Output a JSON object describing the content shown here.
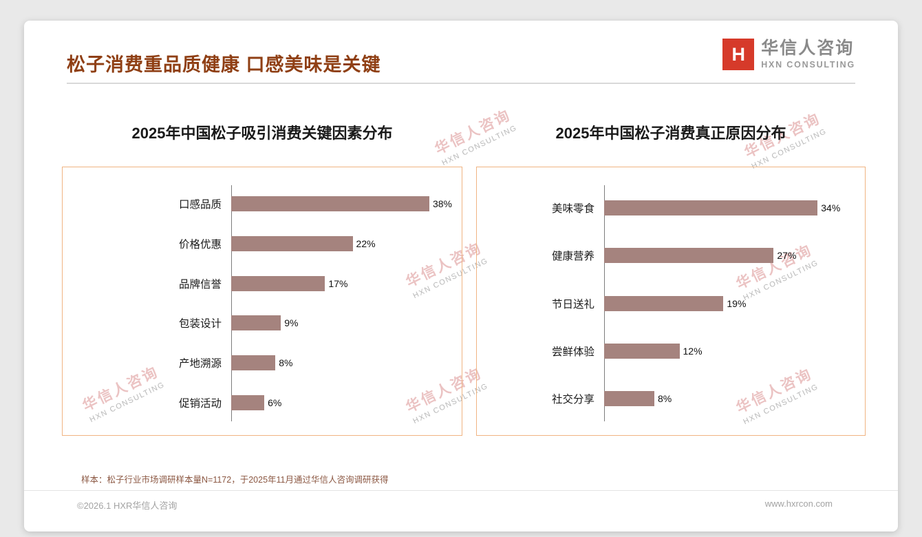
{
  "page": {
    "title": "松子消费重品质健康 口感美味是关键",
    "sample_note": "样本：松子行业市场调研样本量N=1172，于2025年11月通过华信人咨询调研获得",
    "copyright": "©2026.1 HXR华信人咨询",
    "website": "www.hxrcon.com"
  },
  "logo": {
    "mark": "H",
    "name": "华信人咨询",
    "subtitle": "HXN CONSULTING"
  },
  "watermark": {
    "cn": "华信人咨询",
    "en": "HXN CONSULTING"
  },
  "colors": {
    "title": "#8f3f14",
    "bar": "#a5837e",
    "chart_border": "#f0b482",
    "logo_red": "#d63a2a",
    "background": "#e9e9e9"
  },
  "chart_data": [
    {
      "type": "bar",
      "orientation": "horizontal",
      "title": "2025年中国松子吸引消费关键因素分布",
      "categories": [
        "口感品质",
        "价格优惠",
        "品牌信誉",
        "包装设计",
        "产地溯源",
        "促销活动"
      ],
      "values": [
        38,
        22,
        17,
        9,
        8,
        6
      ],
      "unit": "%",
      "xlim": [
        0,
        40
      ],
      "grid": false,
      "legend": false,
      "xlabel": "",
      "ylabel": ""
    },
    {
      "type": "bar",
      "orientation": "horizontal",
      "title": "2025年中国松子消费真正原因分布",
      "categories": [
        "美味零食",
        "健康营养",
        "节日送礼",
        "尝鲜体验",
        "社交分享"
      ],
      "values": [
        34,
        27,
        19,
        12,
        8
      ],
      "unit": "%",
      "xlim": [
        0,
        40
      ],
      "grid": false,
      "legend": false,
      "xlabel": "",
      "ylabel": ""
    }
  ]
}
